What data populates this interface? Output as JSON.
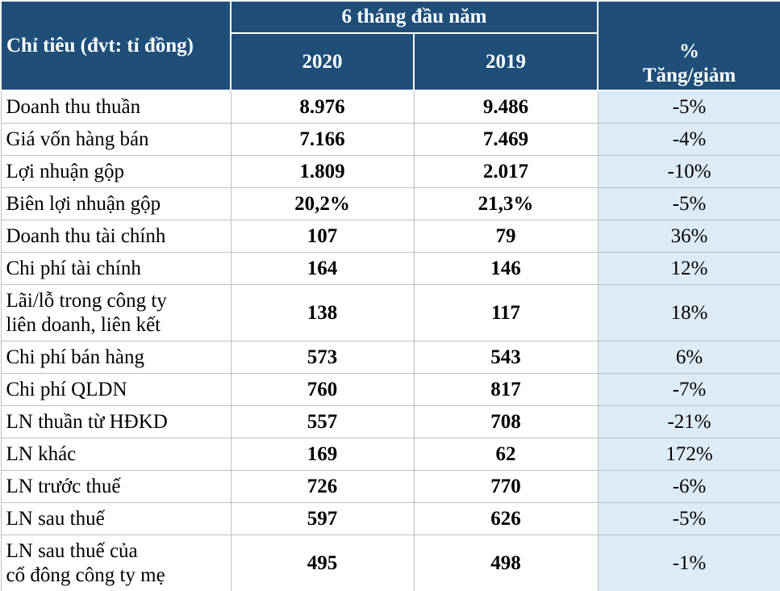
{
  "header": {
    "title": "Chỉ tiêu (đvt: tỉ đồng)",
    "period": "6 tháng đầu năm",
    "columns": [
      "2020",
      "2019",
      "%\nTăng/giảm"
    ]
  },
  "table": {
    "rows": [
      [
        "Doanh thu thuần",
        "8.976",
        "9.486",
        "-5%"
      ],
      [
        "Giá vốn hàng bán",
        "7.166",
        "7.469",
        "-4%"
      ],
      [
        "Lợi nhuận gộp",
        "1.809",
        "2.017",
        "-10%"
      ],
      [
        "Biên lợi nhuận gộp",
        "20,2%",
        "21,3%",
        "-5%"
      ],
      [
        "Doanh thu tài chính",
        "107",
        "79",
        "36%"
      ],
      [
        "Chi phí tài chính",
        "164",
        "146",
        "12%"
      ],
      [
        "Lãi/lỗ trong công ty\nliên doanh, liên kết",
        "138",
        "117",
        "18%"
      ],
      [
        "Chi phí bán hàng",
        "573",
        "543",
        "6%"
      ],
      [
        "Chi phí QLDN",
        "760",
        "817",
        "-7%"
      ],
      [
        "LN thuần từ HĐKD",
        "557",
        "708",
        "-21%"
      ],
      [
        "LN khác",
        "169",
        "62",
        "172%"
      ],
      [
        "LN trước thuế",
        "726",
        "770",
        "-6%"
      ],
      [
        "LN sau thuế",
        "597",
        "626",
        "-5%"
      ],
      [
        "LN sau thuế của\ncổ đông công ty mẹ",
        "495",
        "498",
        "-1%"
      ]
    ]
  }
}
